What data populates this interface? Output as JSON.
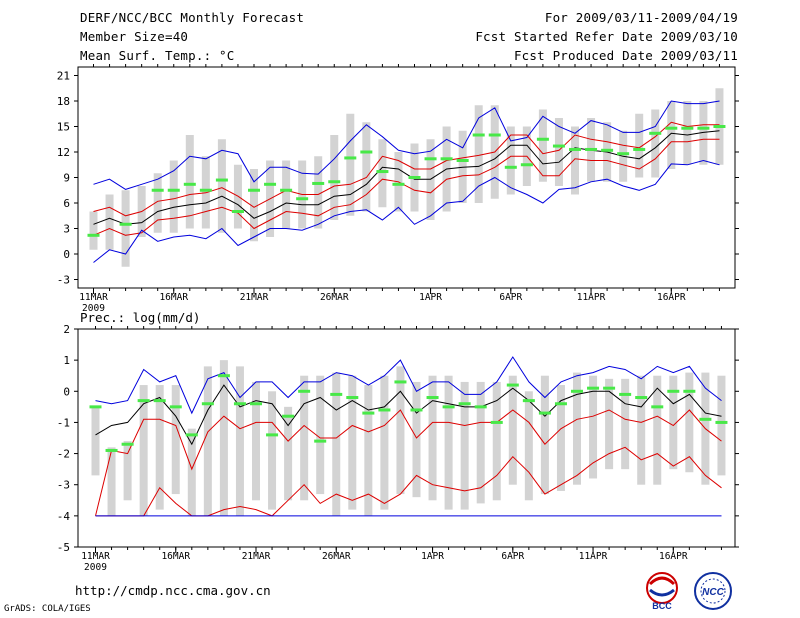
{
  "header": {
    "title": "DERF/NCC/BCC Monthly Forecast",
    "member": "Member Size=40",
    "variable": "Mean Surf. Temp.: °C",
    "period": "For 2009/03/11-2009/04/19",
    "started": "Fcst Started Refer Date 2009/03/10",
    "produced": "Fcst Produced Date 2009/03/11"
  },
  "footer": {
    "url": "http://cmdp.ncc.cma.gov.cn",
    "grads": "GrADS: COLA/IGES",
    "logo_left": "BCC",
    "logo_right": "NCC"
  },
  "colors": {
    "frame": "#000000",
    "bar": "#d3d3d3",
    "marker": "#48e848",
    "outer": "#0000dd",
    "inner": "#dd0000",
    "mean": "#000000"
  },
  "chart_data": [
    {
      "type": "line",
      "title": "Mean Surf. Temp.: °C",
      "xlabel": "",
      "ylabel": "",
      "x_ticks": [
        "11MAR",
        "16MAR",
        "21MAR",
        "26MAR",
        "1APR",
        "6APR",
        "11APR",
        "16APR"
      ],
      "x_tick_index": [
        0,
        5,
        10,
        15,
        21,
        26,
        31,
        36
      ],
      "year_label": "2009",
      "ylim": [
        -4,
        22
      ],
      "y_ticks": [
        -3,
        0,
        3,
        6,
        9,
        12,
        15,
        18,
        21
      ],
      "categories": [
        "03/11",
        "03/12",
        "03/13",
        "03/14",
        "03/15",
        "03/16",
        "03/17",
        "03/18",
        "03/19",
        "03/20",
        "03/21",
        "03/22",
        "03/23",
        "03/24",
        "03/25",
        "03/26",
        "03/27",
        "03/28",
        "03/29",
        "03/30",
        "03/31",
        "04/01",
        "04/02",
        "04/03",
        "04/04",
        "04/05",
        "04/06",
        "04/07",
        "04/08",
        "04/09",
        "04/10",
        "04/11",
        "04/12",
        "04/13",
        "04/14",
        "04/15",
        "04/16",
        "04/17",
        "04/18",
        "04/19"
      ],
      "bars_low": [
        0.5,
        0.5,
        -1.5,
        2,
        2.5,
        2.5,
        3,
        3,
        2.5,
        3,
        1.5,
        2,
        3,
        3,
        3,
        4,
        4.5,
        5,
        5.5,
        5,
        5,
        4,
        5,
        6,
        6,
        6.5,
        7,
        8,
        8.5,
        8,
        7,
        8.5,
        8.5,
        8.5,
        9,
        9,
        10,
        10.5,
        10.5,
        10.5
      ],
      "bars_high": [
        5,
        7,
        7.5,
        8,
        9.5,
        11,
        14,
        11.5,
        13.5,
        10.5,
        10,
        11,
        11,
        11,
        11.5,
        14,
        16.5,
        15.5,
        13.5,
        12,
        13,
        13.5,
        15,
        14.5,
        17.5,
        17.5,
        15,
        15,
        17,
        16,
        15,
        16,
        15.5,
        14.5,
        16.5,
        17,
        18,
        18,
        18,
        19.5
      ],
      "series": [
        {
          "name": "max",
          "values": [
            8.2,
            8.8,
            7.6,
            8.2,
            8.8,
            9.8,
            11.5,
            11.2,
            12.2,
            11.8,
            8.5,
            10.2,
            10.2,
            9.5,
            9.4,
            11.2,
            13.3,
            15.2,
            13.8,
            12.2,
            11.8,
            12.1,
            13.5,
            12.5,
            16,
            17.2,
            13.3,
            13.7,
            16.2,
            15,
            14.2,
            15.7,
            15.2,
            14.3,
            14.3,
            15,
            18,
            17.7,
            17.7,
            18
          ]
        },
        {
          "name": "upper",
          "values": [
            5,
            5.5,
            4.5,
            5,
            6.2,
            6.5,
            7,
            7.2,
            7.8,
            6.8,
            5.5,
            6.5,
            7.5,
            7,
            7,
            8,
            8.2,
            9,
            11.5,
            11,
            10,
            10,
            11,
            11.3,
            11.6,
            12,
            14,
            14,
            11.8,
            12.2,
            14,
            13.5,
            13.2,
            12.8,
            12.5,
            13.8,
            15.5,
            15,
            15.2,
            15.2
          ]
        },
        {
          "name": "mean",
          "values": [
            3.5,
            4.2,
            3.5,
            3.7,
            5,
            5.5,
            5.8,
            6,
            6.8,
            5.8,
            4.2,
            5,
            6,
            5.8,
            5.8,
            6.8,
            7,
            8.2,
            10.2,
            10,
            8.8,
            8.8,
            10,
            10.2,
            10.3,
            11.2,
            12.8,
            12.8,
            10.6,
            10.8,
            12.5,
            12.2,
            12,
            11.5,
            11.2,
            12.5,
            14.2,
            14,
            14.3,
            14.5
          ]
        },
        {
          "name": "lower",
          "values": [
            2.2,
            3,
            2.2,
            2.5,
            4,
            4.2,
            4.5,
            5,
            5.5,
            4.8,
            3,
            4,
            5,
            4.8,
            4.5,
            5.5,
            5.8,
            7,
            8.8,
            8.5,
            7.5,
            7.2,
            8.8,
            9.2,
            9.3,
            10.2,
            11.5,
            11.5,
            9.2,
            9.2,
            11.2,
            11,
            11,
            10.5,
            10,
            11.2,
            13.2,
            13.2,
            13.5,
            13.5
          ]
        },
        {
          "name": "min",
          "values": [
            -1,
            0.5,
            0,
            2.8,
            1.5,
            2,
            2.2,
            1.8,
            3,
            1,
            2,
            3,
            3,
            2.8,
            3.5,
            4.5,
            5,
            5.2,
            4,
            5.5,
            3.5,
            4.5,
            6,
            6.2,
            8,
            9,
            7.8,
            7,
            6,
            7.6,
            7.8,
            8.5,
            8.8,
            8,
            7.5,
            8.2,
            10.6,
            10.5,
            11,
            10.5
          ]
        },
        {
          "name": "observed",
          "values": [
            2.2,
            null,
            3.5,
            null,
            7.5,
            7.5,
            8.2,
            7.5,
            8.7,
            5,
            7.5,
            8.2,
            7.5,
            6.5,
            8.3,
            8.5,
            11.3,
            12,
            9.7,
            8.2,
            9,
            11.2,
            11.2,
            11,
            14,
            14,
            10.2,
            10.5,
            13.5,
            12.7,
            12.3,
            12.3,
            12.2,
            11.8,
            12.3,
            14.2,
            14.8,
            14.8,
            14.8,
            15
          ]
        }
      ]
    },
    {
      "type": "line",
      "title": "Prec.: log(mm/d)",
      "xlabel": "",
      "ylabel": "",
      "x_ticks": [
        "11MAR",
        "16MAR",
        "21MAR",
        "26MAR",
        "1APR",
        "6APR",
        "11APR",
        "16APR"
      ],
      "x_tick_index": [
        0,
        5,
        10,
        15,
        21,
        26,
        31,
        36
      ],
      "year_label": "2009",
      "ylim": [
        -5,
        2
      ],
      "y_ticks": [
        -5,
        -4,
        -3,
        -2,
        -1,
        0,
        1,
        2
      ],
      "categories": [
        "03/11",
        "03/12",
        "03/13",
        "03/14",
        "03/15",
        "03/16",
        "03/17",
        "03/18",
        "03/19",
        "03/20",
        "03/21",
        "03/22",
        "03/23",
        "03/24",
        "03/25",
        "03/26",
        "03/27",
        "03/28",
        "03/29",
        "03/30",
        "03/31",
        "04/01",
        "04/02",
        "04/03",
        "04/04",
        "04/05",
        "04/06",
        "04/07",
        "04/08",
        "04/09",
        "04/10",
        "04/11",
        "04/12",
        "04/13",
        "04/14",
        "04/15",
        "04/16",
        "04/17",
        "04/18",
        "04/19"
      ],
      "bars_low": [
        -2.7,
        -4,
        -3.5,
        -4,
        -3.8,
        -3.3,
        -4,
        -4,
        -4,
        -4,
        -3.5,
        -3.8,
        -3.5,
        -3.5,
        -3.3,
        -4,
        -3.8,
        -4,
        -3.8,
        -3.3,
        -3.4,
        -3.5,
        -3.8,
        -3.8,
        -3.6,
        -3.5,
        -3,
        -3.5,
        -3.3,
        -3.2,
        -3,
        -2.8,
        -2.5,
        -2.5,
        -3,
        -3,
        -2.5,
        -2.6,
        -3,
        -2.7
      ],
      "bars_high": [
        -0.5,
        -1.8,
        -1.6,
        0.2,
        0.2,
        0.2,
        -1.2,
        0.8,
        1,
        0.8,
        0.3,
        0,
        -0.5,
        0.5,
        0.5,
        0.6,
        0.5,
        0.2,
        0.5,
        0.8,
        0.3,
        0.5,
        0.5,
        0.3,
        0.3,
        0.3,
        0.5,
        0,
        0.5,
        0.2,
        0.6,
        0.5,
        0.4,
        0.4,
        0.5,
        0.5,
        0.5,
        0.6,
        0.6,
        0.5
      ],
      "series": [
        {
          "name": "max",
          "values": [
            -0.3,
            -0.4,
            -0.3,
            0.7,
            0.3,
            0.5,
            -0.7,
            0.4,
            0.6,
            -0.2,
            0.3,
            0.3,
            -0.2,
            0.3,
            0.3,
            0.6,
            0.5,
            0.2,
            0.5,
            1,
            0,
            0.3,
            0.3,
            -0.1,
            -0.1,
            0.3,
            1.1,
            0.3,
            -0.2,
            0.3,
            0.5,
            0.6,
            0.8,
            0.7,
            0.4,
            0.8,
            0.6,
            0.8,
            0.1,
            -0.3
          ]
        },
        {
          "name": "mean",
          "values": [
            -1.4,
            -1.1,
            -1,
            -0.4,
            -0.2,
            -0.8,
            -1.7,
            -0.6,
            0.2,
            -0.5,
            -0.3,
            -0.4,
            -1.1,
            -0.4,
            -0.2,
            -0.6,
            -0.3,
            -0.6,
            -0.5,
            0,
            -0.7,
            -0.3,
            -0.4,
            -0.5,
            -0.5,
            -0.3,
            0.1,
            -0.3,
            -0.8,
            -0.3,
            -0.1,
            0,
            0,
            -0.4,
            -0.5,
            0.1,
            -0.4,
            -0.1,
            -0.7,
            -0.8
          ]
        },
        {
          "name": "upper",
          "values": [
            -4,
            -1.9,
            -2,
            -0.9,
            -0.9,
            -1.1,
            -2.5,
            -1.3,
            -0.8,
            -1.2,
            -1,
            -1,
            -1.6,
            -1.1,
            -1.5,
            -1.5,
            -1.1,
            -1.3,
            -1.1,
            -0.6,
            -1.5,
            -1,
            -1,
            -1.1,
            -1,
            -1,
            -0.6,
            -1,
            -1.7,
            -1.2,
            -0.9,
            -0.8,
            -0.6,
            -0.9,
            -1,
            -0.8,
            -1.1,
            -0.6,
            -1.2,
            -1.6
          ]
        },
        {
          "name": "lower",
          "values": [
            -4,
            -4,
            -4,
            -4,
            -3.1,
            -3.6,
            -4,
            -4,
            -3.8,
            -3.7,
            -3.8,
            -4,
            -3.5,
            -3,
            -3.6,
            -3.3,
            -3.5,
            -3.3,
            -3.6,
            -3.3,
            -2.7,
            -3,
            -3.1,
            -3.2,
            -3.1,
            -2.7,
            -2.1,
            -2.6,
            -3.3,
            -3,
            -2.7,
            -2.3,
            -2,
            -1.8,
            -2.2,
            -2,
            -2.4,
            -2.1,
            -2.7,
            -3.1
          ]
        },
        {
          "name": "min",
          "values": [
            -4,
            -4,
            -4,
            -4,
            -4,
            -4,
            -4,
            -4,
            -4,
            -4,
            -4,
            -4,
            -4,
            -4,
            -4,
            -4,
            -4,
            -4,
            -4,
            -4,
            -4,
            -4,
            -4,
            -4,
            -4,
            -4,
            -4,
            -4,
            -4,
            -4,
            -4,
            -4,
            -4,
            -4,
            -4,
            -4,
            -4,
            -4,
            -4,
            -4
          ]
        },
        {
          "name": "observed",
          "values": [
            -0.5,
            -1.9,
            -1.7,
            -0.3,
            -0.3,
            -0.5,
            -1.4,
            -0.4,
            0.5,
            -0.4,
            -0.4,
            -1.4,
            -0.8,
            0,
            -1.6,
            -0.1,
            -0.2,
            -0.7,
            -0.6,
            0.3,
            -0.6,
            -0.2,
            -0.5,
            -0.4,
            -0.5,
            -1,
            0.2,
            -0.3,
            -0.7,
            -0.4,
            0,
            0.1,
            0.1,
            -0.1,
            -0.2,
            -0.5,
            0,
            0,
            -0.9,
            -1
          ]
        }
      ]
    }
  ]
}
